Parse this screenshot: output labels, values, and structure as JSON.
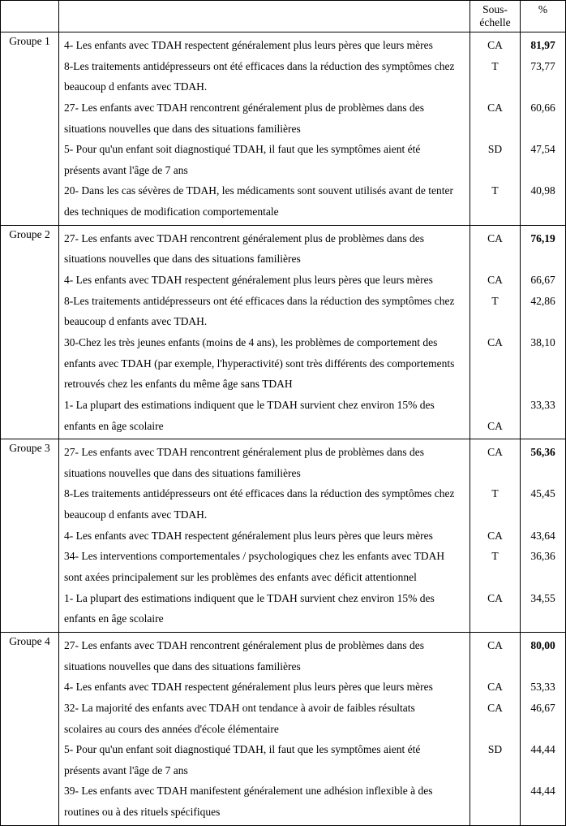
{
  "header": {
    "sous_echelle_line1": "Sous-",
    "sous_echelle_line2": "échelle",
    "pourcent": "%"
  },
  "groups": [
    {
      "label": "Groupe 1",
      "items": [
        "4- Les enfants avec TDAH respectent généralement plus leurs pères que leurs mères",
        "8-Les traitements antidépresseurs ont été efficaces dans la réduction des symptômes chez",
        "beaucoup d enfants avec TDAH.",
        "27- Les enfants avec TDAH rencontrent généralement plus de problèmes dans des",
        "situations nouvelles que dans des situations familières",
        "5- Pour qu'un enfant soit diagnostiqué TDAH, il faut que les symptômes aient été",
        "présents avant l'âge de 7 ans",
        "20- Dans les cas sévères de TDAH, les médicaments sont souvent utilisés avant de tenter",
        "des techniques de modification comportementale"
      ],
      "sub": [
        "CA",
        "T",
        "",
        "CA",
        "",
        "SD",
        "",
        "T",
        ""
      ],
      "pct": [
        "81,97",
        "73,77",
        "",
        "60,66",
        "",
        "47,54",
        "",
        "40,98",
        ""
      ],
      "bold_first_pct": true
    },
    {
      "label": "Groupe 2",
      "items": [
        "27- Les enfants avec TDAH rencontrent généralement plus de problèmes dans des",
        "situations nouvelles que dans des situations familières",
        "4- Les enfants avec TDAH respectent généralement plus leurs pères que leurs mères",
        "8-Les traitements antidépresseurs ont été efficaces dans la réduction des symptômes chez",
        "beaucoup d enfants avec TDAH.",
        "30-Chez les très jeunes enfants (moins de 4 ans), les problèmes de comportement des",
        "enfants avec TDAH (par exemple, l'hyperactivité) sont très différents des comportements",
        "retrouvés chez les enfants du même âge sans TDAH",
        "1- La plupart des estimations indiquent que le TDAH survient chez environ 15% des",
        "enfants en âge scolaire"
      ],
      "sub": [
        "CA",
        "",
        "CA",
        "T",
        "",
        "CA",
        "",
        "",
        "",
        "CA"
      ],
      "pct": [
        "76,19",
        "",
        "66,67",
        "42,86",
        "",
        "38,10",
        "",
        "",
        "33,33",
        ""
      ],
      "bold_first_pct": true
    },
    {
      "label": "Groupe 3",
      "items": [
        "27- Les enfants avec TDAH rencontrent généralement plus de problèmes dans des",
        "situations nouvelles que dans des situations familières",
        "8-Les traitements antidépresseurs ont été efficaces dans la réduction des symptômes chez",
        "beaucoup d enfants avec TDAH.",
        "4- Les enfants avec TDAH respectent généralement plus leurs pères que leurs mères",
        "34- Les interventions comportementales / psychologiques chez les enfants avec TDAH",
        "sont axées principalement sur les problèmes des enfants avec déficit attentionnel",
        "1- La plupart des estimations indiquent que le TDAH survient chez environ 15% des",
        "enfants en âge scolaire"
      ],
      "sub": [
        "CA",
        "",
        "T",
        "",
        "CA",
        "T",
        "",
        "CA",
        ""
      ],
      "pct": [
        "56,36",
        "",
        "45,45",
        "",
        "43,64",
        "36,36",
        "",
        "34,55",
        ""
      ],
      "bold_first_pct": true
    },
    {
      "label": "Groupe 4",
      "items": [
        "27- Les enfants avec TDAH rencontrent généralement plus de problèmes dans des",
        "situations nouvelles que dans des situations familières",
        "4- Les enfants avec TDAH respectent généralement plus leurs pères que leurs mères",
        "32- La majorité des enfants avec TDAH ont tendance à avoir de faibles résultats",
        "scolaires au cours des années d'école élémentaire",
        "5- Pour qu'un enfant soit diagnostiqué TDAH, il faut que les symptômes aient été",
        "présents avant l'âge de 7 ans",
        "39- Les enfants avec TDAH manifestent généralement une adhésion inflexible à des",
        "routines ou à des rituels spécifiques"
      ],
      "sub": [
        "CA",
        "",
        "CA",
        "CA",
        "",
        "SD",
        "",
        "",
        ""
      ],
      "pct": [
        "80,00",
        "",
        "53,33",
        "46,67",
        "",
        "44,44",
        "",
        "44,44",
        ""
      ],
      "bold_first_pct": true
    }
  ]
}
